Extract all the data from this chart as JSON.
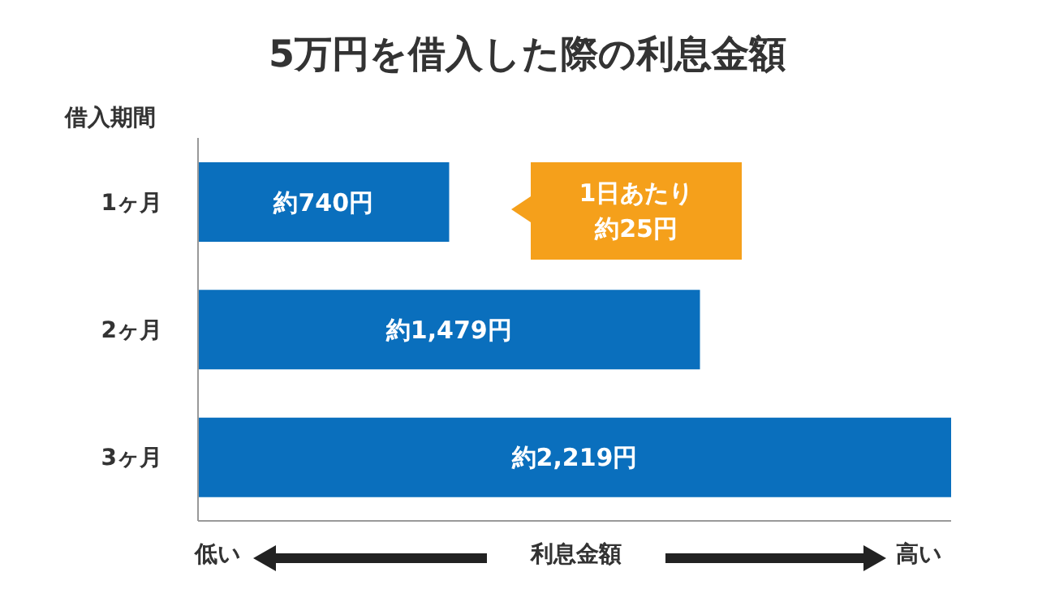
{
  "chart_data": {
    "type": "bar",
    "orientation": "horizontal",
    "title": "5万円を借入した際の利息金額",
    "ylabel": "借入期間",
    "xlabel": "利息金額",
    "categories": [
      "1ヶ月",
      "2ヶ月",
      "3ヶ月"
    ],
    "values": [
      740,
      1479,
      2219
    ],
    "value_labels": [
      "約740円",
      "約1,479円",
      "約2,219円"
    ],
    "color": "#0a6fbd",
    "annotations": [
      "1日あたり",
      "約25円",
      "低い",
      "高い"
    ],
    "grid": false,
    "legend": false
  }
}
